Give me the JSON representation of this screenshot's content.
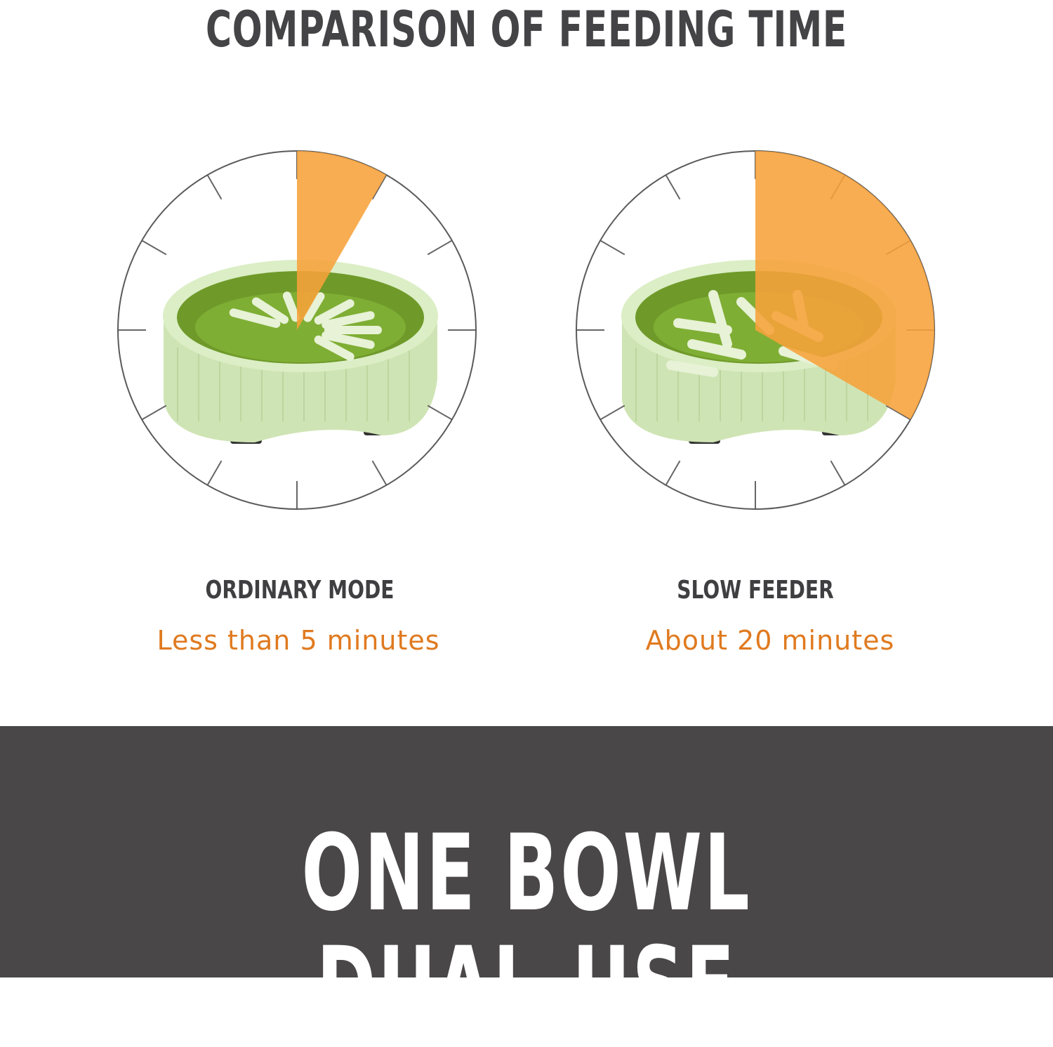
{
  "header": {
    "title": "COMPARISON OF FEEDING TIME"
  },
  "comparisons": [
    {
      "mode": "ORDINARY MODE",
      "time": "Less than 5 minutes",
      "slice_fraction": 0.083
    },
    {
      "mode": "SLOW FEEDER",
      "time": "About 20 minutes",
      "slice_fraction": 0.333
    }
  ],
  "banner": {
    "text": "ONE BOWL DUAL-USE"
  },
  "colors": {
    "accent": "#f7a23a",
    "accent_text": "#e07a1f",
    "dark": "#4a4748",
    "bowl_light": "#cfe4b4",
    "bowl_dark": "#6f9a2a"
  }
}
